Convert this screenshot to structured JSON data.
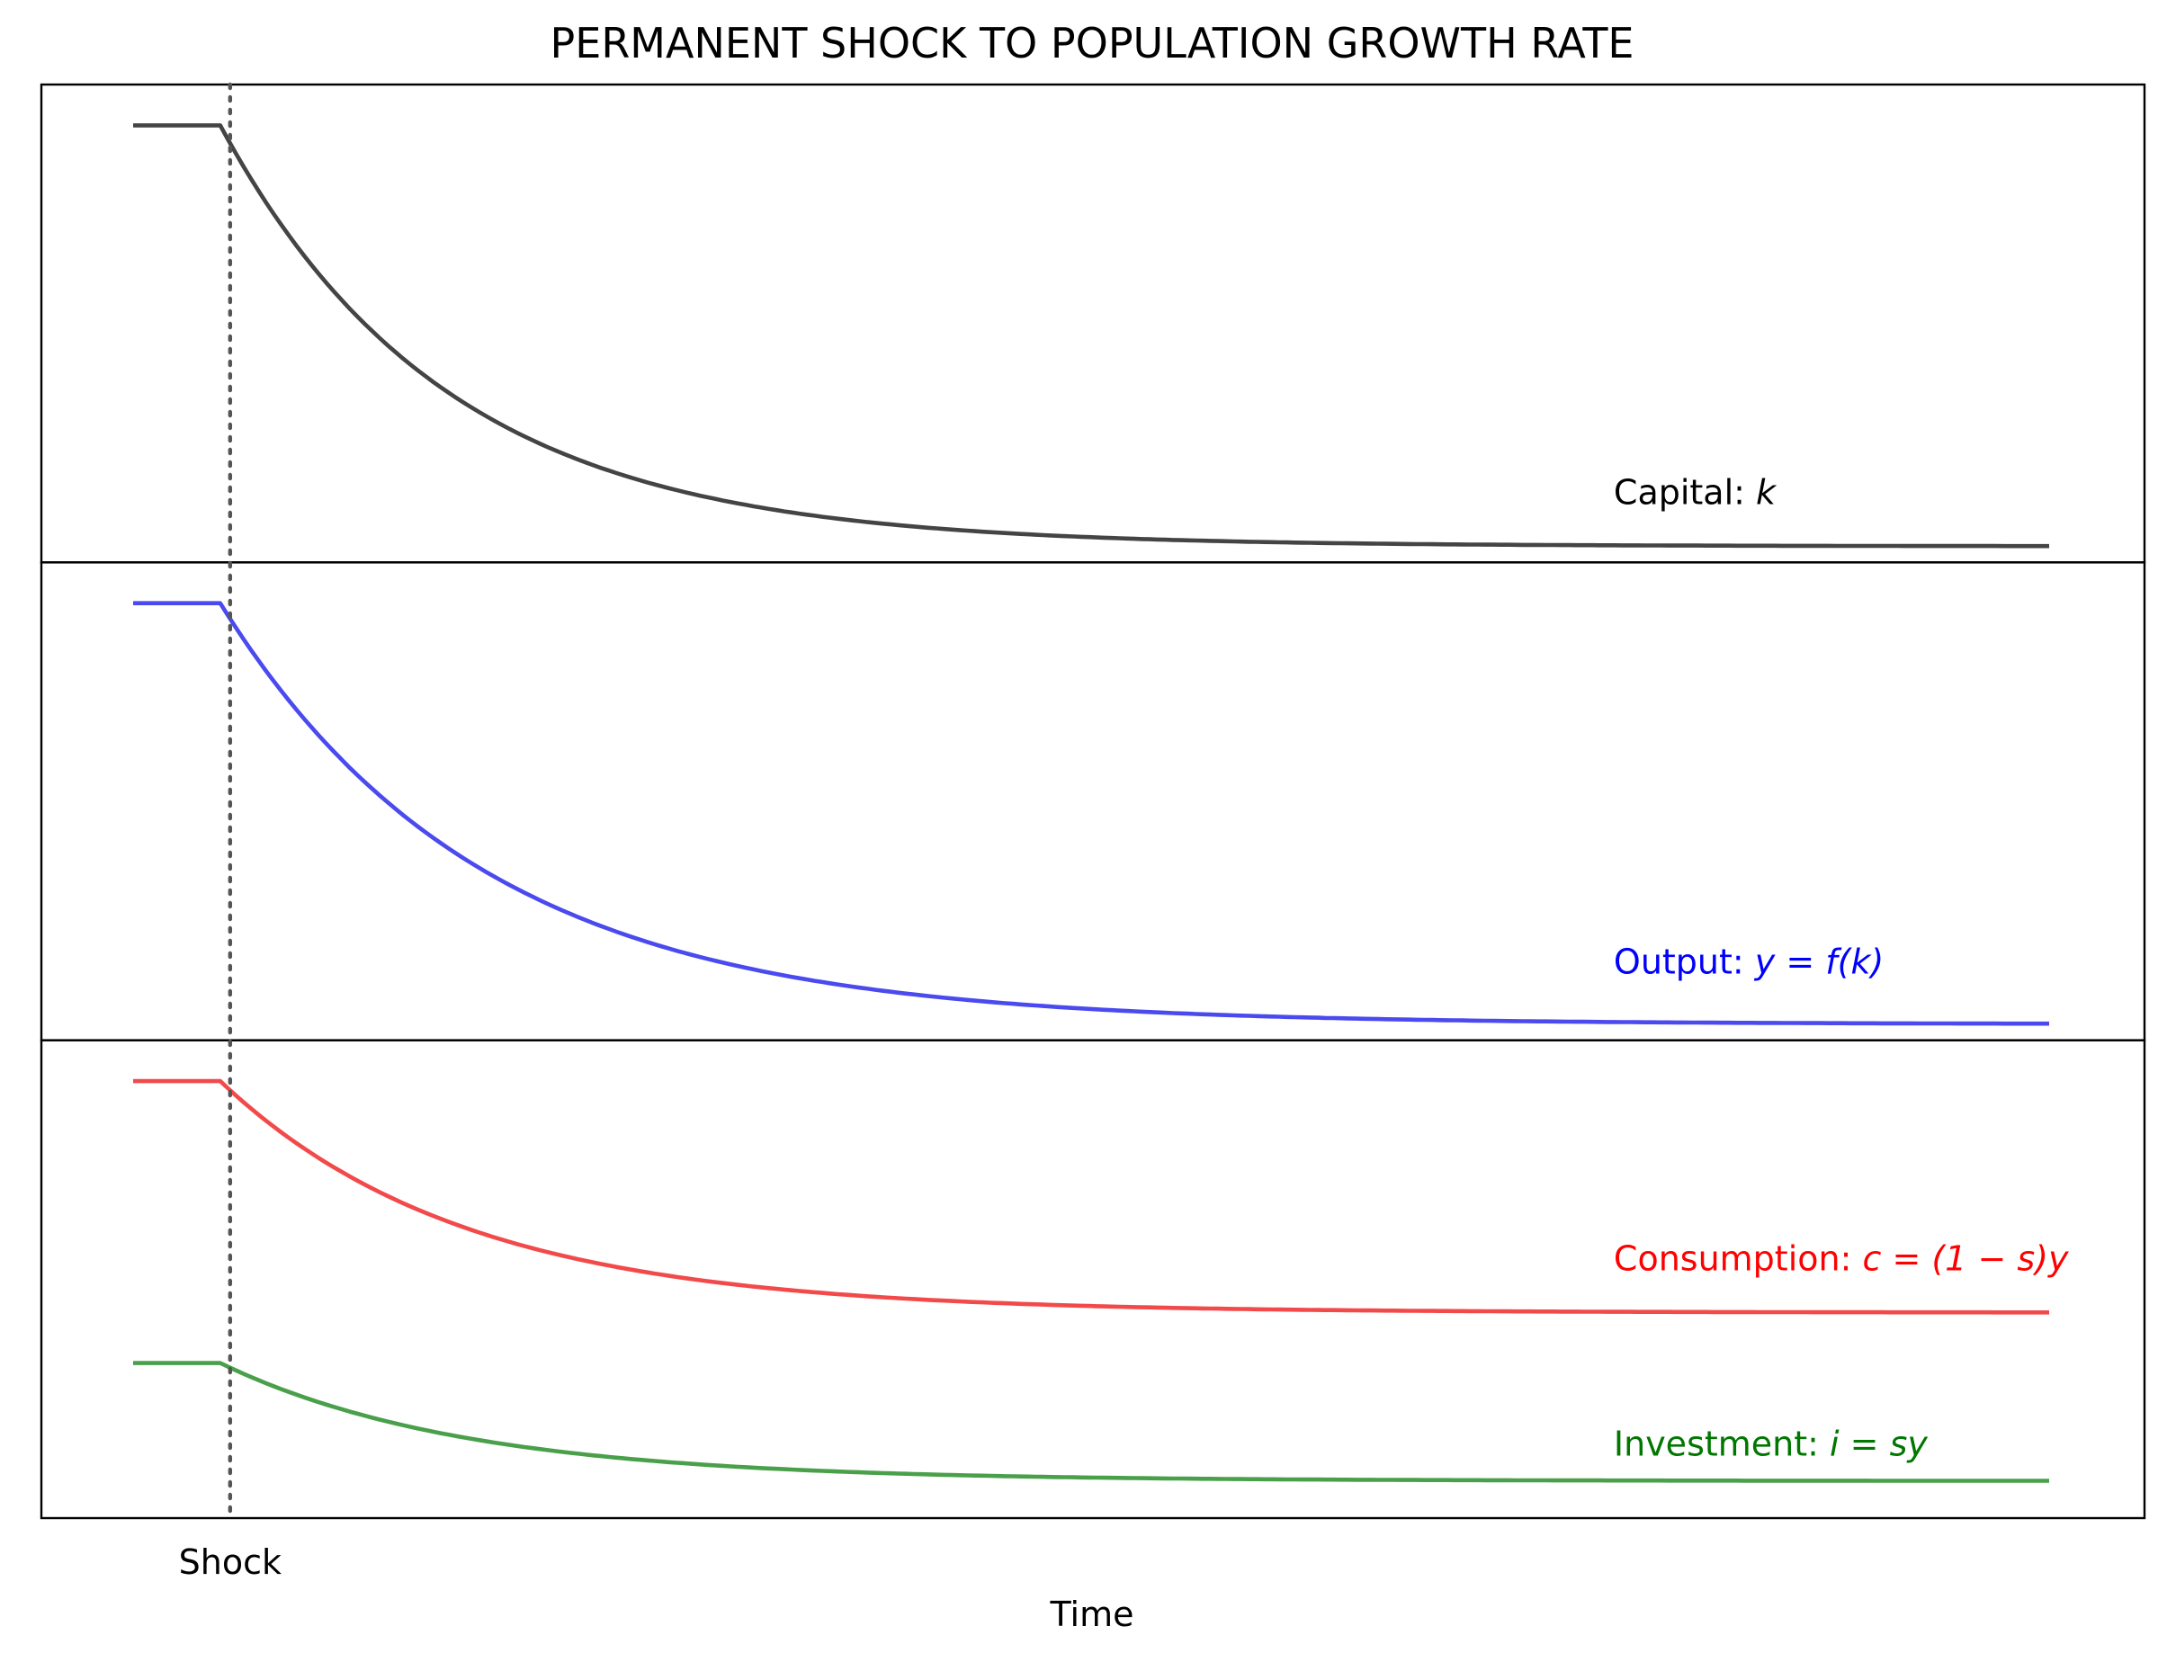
{
  "chart_data": {
    "type": "line",
    "title": "PERMANENT SHOCK TO POPULATION GROWTH RATE",
    "xlabel": "Time",
    "ylabel": "",
    "x_ticks": [
      {
        "x": 5,
        "label": "Shock"
      }
    ],
    "shock_x": 5,
    "xlim": [
      0,
      120
    ],
    "grid": false,
    "legend": "none",
    "panels": [
      {
        "name": "capital-panel",
        "ylim": [
          0,
          1.05
        ],
        "series": [
          {
            "name": "Capital",
            "label_prefix": "Capital: ",
            "label_math": "k",
            "color": "#000000",
            "line_color": "#444444",
            "x_start": 0,
            "shock_x": 5,
            "x_end": 110,
            "start": 1.0,
            "end": 0.0,
            "tau": 13,
            "label_x": 85,
            "label_y": 0.1
          }
        ]
      },
      {
        "name": "output-panel",
        "ylim": [
          0,
          1.05
        ],
        "series": [
          {
            "name": "Output",
            "label_prefix": "Output: ",
            "label_math": "y = f(k)",
            "color": "#0000ff",
            "line_color": "#4a4aef",
            "x_start": 0,
            "shock_x": 5,
            "x_end": 110,
            "start": 1.0,
            "end": 0.0,
            "tau": 15,
            "label_x": 85,
            "label_y": 0.12
          }
        ]
      },
      {
        "name": "consumption-investment-panel",
        "ylim": [
          0,
          1.05
        ],
        "series": [
          {
            "name": "Consumption",
            "label_prefix": "Consumption: ",
            "label_math": "c = (1 − s)y",
            "color": "#ff0000",
            "line_color": "#f24a4a",
            "x_start": 0,
            "shock_x": 5,
            "x_end": 110,
            "start": 1.0,
            "end": 0.45,
            "tau": 14,
            "label_x": 85,
            "label_y": 0.55
          },
          {
            "name": "Investment",
            "label_prefix": "Investment: ",
            "label_math": "i = sy",
            "color": "#007700",
            "line_color": "#4aa04a",
            "x_start": 0,
            "shock_x": 5,
            "x_end": 110,
            "start": 0.33,
            "end": 0.05,
            "tau": 14,
            "label_x": 85,
            "label_y": 0.11
          }
        ]
      }
    ]
  }
}
